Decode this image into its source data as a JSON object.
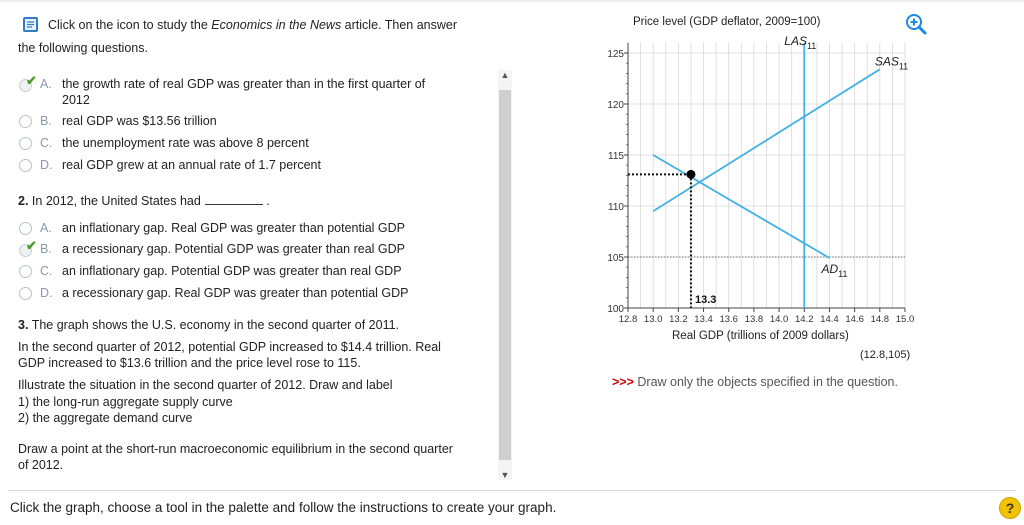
{
  "colors": {
    "accent": "#2196f3",
    "check": "#4a9a2a",
    "curve": "#43b0e6",
    "instruction_red": "#cc0000"
  },
  "intro": {
    "icon": "book-icon",
    "line1_before": "Click on the icon to study the ",
    "line1_italic": "Economics in the News",
    "line1_after": " article. Then answer",
    "line2": "the following questions."
  },
  "q1": {
    "options": [
      {
        "letter": "A.",
        "text": "the growth rate of real GDP was greater than in the first quarter of",
        "text2": "2012",
        "selected": true
      },
      {
        "letter": "B.",
        "text": "real GDP was $13.56 trillion"
      },
      {
        "letter": "C.",
        "text": "the unemployment rate was above 8 percent"
      },
      {
        "letter": "D.",
        "text": "real GDP grew at an annual rate of 1.7 percent"
      }
    ]
  },
  "q2": {
    "number": "2.",
    "prompt": "In 2012, the United States had",
    "prompt_end": ".",
    "options": [
      {
        "letter": "A.",
        "text": "an inflationary gap. Real GDP was greater than potential GDP"
      },
      {
        "letter": "B.",
        "text": "a recessionary gap. Potential GDP was greater than real GDP",
        "selected": true
      },
      {
        "letter": "C.",
        "text": "an inflationary gap. Potential GDP was greater than real GDP"
      },
      {
        "letter": "D.",
        "text": "a recessionary gap. Real GDP was greater than potential GDP"
      }
    ]
  },
  "q3": {
    "number": "3.",
    "line1": "The graph shows the U.S. economy in the second quarter of 2011.",
    "para1_l1": "In the second quarter of 2012, potential GDP increased to $14.4 trillion. Real",
    "para1_l2": "GDP increased to $13.6 trillion and the price level rose to 115.",
    "para2_l1": "Illustrate the situation in the second quarter of 2012. Draw and label",
    "para2_l2": "1) the long-run aggregate supply curve",
    "para2_l3": "2) the aggregate demand curve",
    "para3_l1": "Draw a point at the short-run macroeconomic equilibrium in the second quarter",
    "para3_l2": "of 2012."
  },
  "footer": "Click the graph, choose a tool in the palette and follow the instructions to create your graph.",
  "help_label": "?",
  "graph": {
    "ylabel": "Price level (GDP deflator, 2009=100)",
    "xlabel": "Real GDP (trillions of 2009 dollars)",
    "coord_readout": "(12.8,105)",
    "instruction_prefix": ">>>",
    "instruction": "Draw only the objects specified in the question.",
    "zoom_icon": "zoom-in-icon",
    "las_label": "LAS",
    "las_sub": "11",
    "sas_label": "SAS",
    "sas_sub": "11",
    "ad_label": "AD",
    "ad_sub": "11",
    "point_label": "13.3"
  },
  "chart_data": {
    "type": "line",
    "xlabel": "Real GDP (trillions of 2009 dollars)",
    "ylabel": "Price level (GDP deflator, 2009=100)",
    "xlim": [
      12.8,
      15.0
    ],
    "ylim": [
      100,
      126
    ],
    "x_ticks": [
      "12.8",
      "13.0",
      "13.2",
      "13.4",
      "13.6",
      "13.8",
      "14.0",
      "14.2",
      "14.4",
      "14.6",
      "14.8",
      "15.0"
    ],
    "y_ticks": [
      "100",
      "105",
      "110",
      "115",
      "120",
      "125"
    ],
    "grid": true,
    "series": [
      {
        "name": "LAS11",
        "type": "vertical",
        "x": 14.2
      },
      {
        "name": "SAS11",
        "points": [
          [
            13.0,
            109.5
          ],
          [
            14.8,
            123.4
          ]
        ]
      },
      {
        "name": "AD11",
        "points": [
          [
            13.0,
            115.0
          ],
          [
            14.4,
            104.9
          ]
        ]
      }
    ],
    "equilibrium": {
      "x": 13.3,
      "y": 113.1
    }
  }
}
